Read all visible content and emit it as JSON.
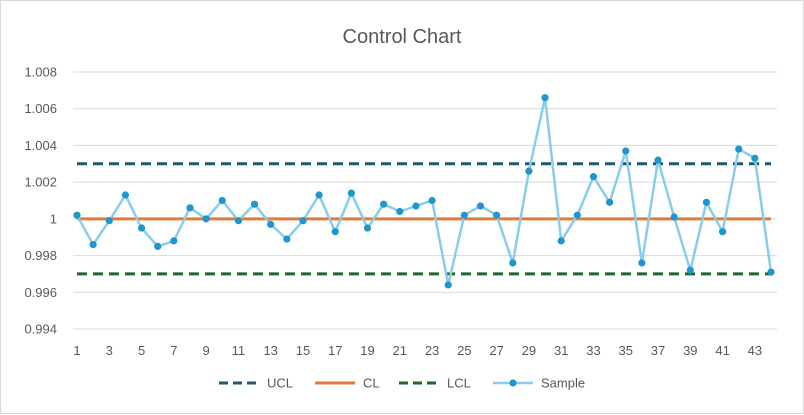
{
  "chart_data": {
    "type": "line",
    "title": "Control Chart",
    "xlabel": "",
    "ylabel": "",
    "x": [
      1,
      2,
      3,
      4,
      5,
      6,
      7,
      8,
      9,
      10,
      11,
      12,
      13,
      14,
      15,
      16,
      17,
      18,
      19,
      20,
      21,
      22,
      23,
      24,
      25,
      26,
      27,
      28,
      29,
      30,
      31,
      32,
      33,
      34,
      35,
      36,
      37,
      38,
      39,
      40,
      41,
      42,
      43,
      44
    ],
    "x_tick_labels": [
      "1",
      "3",
      "5",
      "7",
      "9",
      "11",
      "13",
      "15",
      "17",
      "19",
      "21",
      "23",
      "25",
      "27",
      "29",
      "31",
      "33",
      "35",
      "37",
      "39",
      "41",
      "43"
    ],
    "x_tick_values": [
      1,
      3,
      5,
      7,
      9,
      11,
      13,
      15,
      17,
      19,
      21,
      23,
      25,
      27,
      29,
      31,
      33,
      35,
      37,
      39,
      41,
      43
    ],
    "ylim": [
      0.994,
      1.008
    ],
    "y_ticks": [
      0.994,
      0.996,
      0.998,
      1,
      1.002,
      1.004,
      1.006,
      1.008
    ],
    "y_tick_labels": [
      "0.994",
      "0.996",
      "0.998",
      "1",
      "1.002",
      "1.004",
      "1.006",
      "1.008"
    ],
    "grid": true,
    "legend_position": "bottom",
    "series": [
      {
        "name": "UCL",
        "style": "dashed",
        "color": "#1f5a73",
        "values": [
          1.003,
          1.003,
          1.003,
          1.003,
          1.003,
          1.003,
          1.003,
          1.003,
          1.003,
          1.003,
          1.003,
          1.003,
          1.003,
          1.003,
          1.003,
          1.003,
          1.003,
          1.003,
          1.003,
          1.003,
          1.003,
          1.003,
          1.003,
          1.003,
          1.003,
          1.003,
          1.003,
          1.003,
          1.003,
          1.003,
          1.003,
          1.003,
          1.003,
          1.003,
          1.003,
          1.003,
          1.003,
          1.003,
          1.003,
          1.003,
          1.003,
          1.003,
          1.003,
          1.003
        ]
      },
      {
        "name": "CL",
        "style": "solid",
        "color": "#e07b39",
        "values": [
          1,
          1,
          1,
          1,
          1,
          1,
          1,
          1,
          1,
          1,
          1,
          1,
          1,
          1,
          1,
          1,
          1,
          1,
          1,
          1,
          1,
          1,
          1,
          1,
          1,
          1,
          1,
          1,
          1,
          1,
          1,
          1,
          1,
          1,
          1,
          1,
          1,
          1,
          1,
          1,
          1,
          1,
          1,
          1
        ]
      },
      {
        "name": "LCL",
        "style": "dashed",
        "color": "#1e6b27",
        "values": [
          0.997,
          0.997,
          0.997,
          0.997,
          0.997,
          0.997,
          0.997,
          0.997,
          0.997,
          0.997,
          0.997,
          0.997,
          0.997,
          0.997,
          0.997,
          0.997,
          0.997,
          0.997,
          0.997,
          0.997,
          0.997,
          0.997,
          0.997,
          0.997,
          0.997,
          0.997,
          0.997,
          0.997,
          0.997,
          0.997,
          0.997,
          0.997,
          0.997,
          0.997,
          0.997,
          0.997,
          0.997,
          0.997,
          0.997,
          0.997,
          0.997,
          0.997,
          0.997,
          0.997
        ]
      },
      {
        "name": "Sample",
        "style": "line-markers",
        "color": "#89cdea",
        "marker_color": "#1f96cf",
        "values": [
          1.0002,
          0.9986,
          0.9999,
          1.0013,
          0.9995,
          0.9985,
          0.9988,
          1.0006,
          1.0,
          1.001,
          0.9999,
          1.0008,
          0.9997,
          0.9989,
          0.9999,
          1.0013,
          0.9993,
          1.0014,
          0.9995,
          1.0008,
          1.0004,
          1.0007,
          1.001,
          0.9964,
          1.0002,
          1.0007,
          1.0002,
          0.9976,
          1.0026,
          1.0066,
          0.9988,
          1.0002,
          1.0023,
          1.0009,
          1.0037,
          0.9976,
          1.0032,
          1.0001,
          0.9972,
          1.0009,
          0.9993,
          1.0038,
          1.0033,
          0.9971
        ]
      }
    ]
  }
}
